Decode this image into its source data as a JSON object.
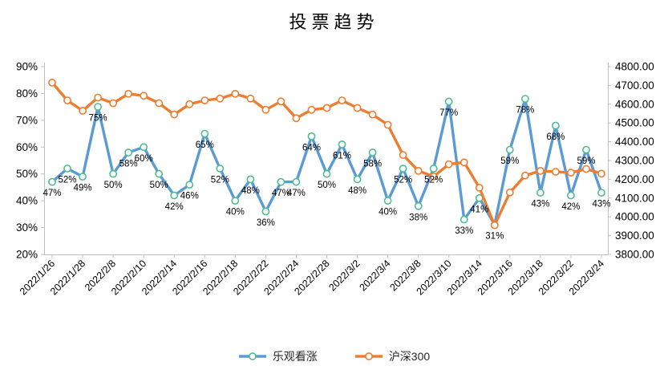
{
  "title": "投票趋势",
  "colors": {
    "bullish_line": "#5B9BD5",
    "bullish_marker_ring": "#4FBE8F",
    "hs300_line": "#ED7D31",
    "hs300_marker_ring": "#ED7D31",
    "marker_fill": "#FFFFFF",
    "axis_line": "#BFBFBF",
    "text": "#000000"
  },
  "chart_data": {
    "type": "line",
    "title": "投票趋势",
    "grid": false,
    "legend_position": "bottom",
    "n_points": 37,
    "x_label_every": 2,
    "x_tick_labels": [
      "2022/1/26",
      "2022/1/28",
      "2022/2/8",
      "2022/2/10",
      "2022/2/14",
      "2022/2/16",
      "2022/2/18",
      "2022/2/22",
      "2022/2/24",
      "2022/2/28",
      "2022/3/2",
      "2022/3/4",
      "2022/3/8",
      "2022/3/10",
      "2022/3/14",
      "2022/3/16",
      "2022/3/18",
      "2022/3/22",
      "2022/3/24"
    ],
    "left_axis": {
      "min": 20,
      "max": 90,
      "step": 10,
      "suffix": "%",
      "ticks": [
        "20%",
        "30%",
        "40%",
        "50%",
        "60%",
        "70%",
        "80%",
        "90%"
      ]
    },
    "right_axis": {
      "min": 3800,
      "max": 4800,
      "step": 100,
      "decimals": 2,
      "ticks": [
        "3800.00",
        "3900.00",
        "4000.00",
        "4100.00",
        "4200.00",
        "4300.00",
        "4400.00",
        "4500.00",
        "4600.00",
        "4700.00",
        "4800.00"
      ]
    },
    "series": [
      {
        "name": "乐观看涨",
        "axis": "left",
        "color": "#5B9BD5",
        "marker_ring": "#4FBE8F",
        "data_labels": true,
        "label_suffix": "%",
        "values": [
          47,
          52,
          49,
          75,
          50,
          58,
          60,
          50,
          42,
          46,
          65,
          52,
          40,
          48,
          36,
          47,
          47,
          64,
          50,
          61,
          48,
          58,
          40,
          52,
          38,
          52,
          77,
          33,
          41,
          31,
          59,
          78,
          43,
          68,
          42,
          59,
          43
        ]
      },
      {
        "name": "沪深300",
        "axis": "right",
        "color": "#ED7D31",
        "marker_ring": "#ED7D31",
        "data_labels": false,
        "values": [
          4715,
          4620,
          4565,
          4635,
          4605,
          4655,
          4645,
          4605,
          4545,
          4600,
          4620,
          4630,
          4655,
          4630,
          4570,
          4615,
          4525,
          4570,
          4580,
          4620,
          4580,
          4545,
          4490,
          4330,
          4245,
          4215,
          4280,
          4290,
          4155,
          3955,
          4130,
          4220,
          4245,
          4240,
          4235,
          4255,
          4230
        ]
      }
    ]
  }
}
